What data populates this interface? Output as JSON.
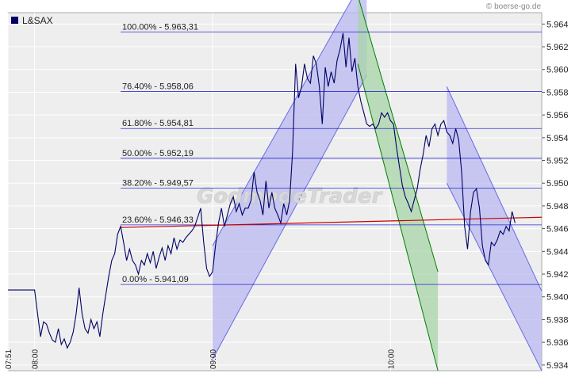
{
  "source": "© boerse-go.de",
  "watermark": "GodmodeTrader",
  "legend": {
    "label": "L&SAX",
    "color": "#000066"
  },
  "colors": {
    "price": "#000066",
    "fib": "#0000cc",
    "trend": "#cc0000",
    "channel_blue_fill": "#b8b8f0",
    "channel_blue_line": "#6a6ae6",
    "channel_green_fill": "#a8d4a8",
    "channel_green_line": "#008000",
    "plot_bg": "#eeeeee",
    "grid": "#ffffff"
  },
  "chart_data": {
    "type": "line",
    "ylim": [
      5.9335,
      5.965
    ],
    "y_ticks": [
      "5.964",
      "5.962",
      "5.960",
      "5.958",
      "5.956",
      "5.954",
      "5.952",
      "5.950",
      "5.948",
      "5.946",
      "5.944",
      "5.942",
      "5.940",
      "5.938",
      "5.936",
      "5.934"
    ],
    "x_ticks": [
      {
        "label": "07:51",
        "t": 0
      },
      {
        "label": "08:00",
        "t": 9
      },
      {
        "label": "09:00",
        "t": 69
      },
      {
        "label": "10:00",
        "t": 129
      }
    ],
    "xlim": [
      0,
      180
    ],
    "fib_levels": [
      {
        "label": "100.00% - 5.963,31",
        "value": 5.96331
      },
      {
        "label": "76.40% - 5.958,06",
        "value": 5.95806
      },
      {
        "label": "61.80% - 5.954,81",
        "value": 5.95481
      },
      {
        "label": "50.00% - 5.952,19",
        "value": 5.95219
      },
      {
        "label": "38.20% - 5.949,57",
        "value": 5.94957
      },
      {
        "label": "23.60% - 5.946,33",
        "value": 5.94633
      },
      {
        "label": "0.00% - 5.941,09",
        "value": 5.94109
      }
    ],
    "trend_line": {
      "t1": 38,
      "y1": 5.9461,
      "t2": 180,
      "y2": 5.947
    },
    "series": [
      {
        "values": [
          [
            0,
            5.9406
          ],
          [
            2,
            5.9406
          ],
          [
            4,
            5.9406
          ],
          [
            6,
            5.9406
          ],
          [
            8,
            5.9406
          ],
          [
            9,
            5.9406
          ],
          [
            10,
            5.9385
          ],
          [
            11,
            5.9365
          ],
          [
            12,
            5.9378
          ],
          [
            13,
            5.9376
          ],
          [
            14,
            5.9368
          ],
          [
            15,
            5.9362
          ],
          [
            16,
            5.936
          ],
          [
            17,
            5.9372
          ],
          [
            18,
            5.9358
          ],
          [
            19,
            5.9363
          ],
          [
            20,
            5.9355
          ],
          [
            21,
            5.936
          ],
          [
            22,
            5.9369
          ],
          [
            23,
            5.9385
          ],
          [
            24,
            5.9408
          ],
          [
            25,
            5.9385
          ],
          [
            26,
            5.9372
          ],
          [
            27,
            5.9368
          ],
          [
            28,
            5.938
          ],
          [
            29,
            5.9372
          ],
          [
            30,
            5.9378
          ],
          [
            31,
            5.9365
          ],
          [
            32,
            5.9385
          ],
          [
            33,
            5.9402
          ],
          [
            34,
            5.9418
          ],
          [
            35,
            5.9432
          ],
          [
            36,
            5.9438
          ],
          [
            37,
            5.9455
          ],
          [
            38,
            5.9462
          ],
          [
            39,
            5.9448
          ],
          [
            40,
            5.9432
          ],
          [
            41,
            5.9442
          ],
          [
            42,
            5.9432
          ],
          [
            43,
            5.9428
          ],
          [
            44,
            5.942
          ],
          [
            45,
            5.9432
          ],
          [
            46,
            5.9428
          ],
          [
            47,
            5.9438
          ],
          [
            48,
            5.943
          ],
          [
            49,
            5.944
          ],
          [
            50,
            5.9425
          ],
          [
            51,
            5.9435
          ],
          [
            52,
            5.9443
          ],
          [
            53,
            5.9432
          ],
          [
            54,
            5.9445
          ],
          [
            55,
            5.9438
          ],
          [
            56,
            5.9452
          ],
          [
            57,
            5.9442
          ],
          [
            58,
            5.945
          ],
          [
            59,
            5.9448
          ],
          [
            60,
            5.9452
          ],
          [
            61,
            5.9455
          ],
          [
            62,
            5.9458
          ],
          [
            63,
            5.9462
          ],
          [
            64,
            5.947
          ],
          [
            65,
            5.9478
          ],
          [
            66,
            5.9448
          ],
          [
            67,
            5.9425
          ],
          [
            68,
            5.9418
          ],
          [
            69,
            5.9422
          ],
          [
            70,
            5.9445
          ],
          [
            71,
            5.9465
          ],
          [
            72,
            5.9478
          ],
          [
            73,
            5.9462
          ],
          [
            74,
            5.9472
          ],
          [
            75,
            5.9482
          ],
          [
            76,
            5.9488
          ],
          [
            77,
            5.9475
          ],
          [
            78,
            5.9482
          ],
          [
            79,
            5.9472
          ],
          [
            80,
            5.9478
          ],
          [
            81,
            5.9478
          ],
          [
            82,
            5.9485
          ],
          [
            83,
            5.951
          ],
          [
            84,
            5.9492
          ],
          [
            85,
            5.9485
          ],
          [
            86,
            5.9472
          ],
          [
            87,
            5.9502
          ],
          [
            88,
            5.9478
          ],
          [
            89,
            5.9492
          ],
          [
            90,
            5.9478
          ],
          [
            91,
            5.9472
          ],
          [
            92,
            5.9465
          ],
          [
            93,
            5.9482
          ],
          [
            94,
            5.9472
          ],
          [
            95,
            5.9485
          ],
          [
            96,
            5.9528
          ],
          [
            97,
            5.9605
          ],
          [
            98,
            5.9575
          ],
          [
            99,
            5.9585
          ],
          [
            100,
            5.9605
          ],
          [
            101,
            5.9592
          ],
          [
            102,
            5.9588
          ],
          [
            103,
            5.9612
          ],
          [
            104,
            5.9605
          ],
          [
            105,
            5.9585
          ],
          [
            106,
            5.9552
          ],
          [
            107,
            5.9602
          ],
          [
            108,
            5.9585
          ],
          [
            109,
            5.9598
          ],
          [
            110,
            5.9588
          ],
          [
            111,
            5.9608
          ],
          [
            112,
            5.9618
          ],
          [
            113,
            5.9632
          ],
          [
            114,
            5.9602
          ],
          [
            115,
            5.9628
          ],
          [
            116,
            5.9598
          ],
          [
            117,
            5.961
          ],
          [
            118,
            5.9585
          ],
          [
            119,
            5.9572
          ],
          [
            120,
            5.9562
          ],
          [
            121,
            5.9552
          ],
          [
            122,
            5.955
          ],
          [
            123,
            5.9552
          ],
          [
            124,
            5.9548
          ],
          [
            125,
            5.9552
          ],
          [
            126,
            5.9562
          ],
          [
            127,
            5.9558
          ],
          [
            128,
            5.9562
          ],
          [
            129,
            5.9555
          ],
          [
            130,
            5.9552
          ],
          [
            131,
            5.9532
          ],
          [
            132,
            5.9515
          ],
          [
            133,
            5.9498
          ],
          [
            134,
            5.9488
          ],
          [
            135,
            5.9482
          ],
          [
            136,
            5.9475
          ],
          [
            137,
            5.9485
          ],
          [
            138,
            5.9495
          ],
          [
            139,
            5.9512
          ],
          [
            140,
            5.9525
          ],
          [
            141,
            5.9542
          ],
          [
            142,
            5.9532
          ],
          [
            143,
            5.9548
          ],
          [
            144,
            5.9552
          ],
          [
            145,
            5.9542
          ],
          [
            146,
            5.9552
          ],
          [
            147,
            5.9555
          ],
          [
            148,
            5.9545
          ],
          [
            149,
            5.9542
          ],
          [
            150,
            5.9535
          ],
          [
            151,
            5.9548
          ],
          [
            152,
            5.9538
          ],
          [
            153,
            5.951
          ],
          [
            154,
            5.9462
          ],
          [
            155,
            5.9442
          ],
          [
            156,
            5.9475
          ],
          [
            157,
            5.9492
          ],
          [
            158,
            5.9495
          ],
          [
            159,
            5.9478
          ],
          [
            160,
            5.9445
          ],
          [
            161,
            5.9432
          ],
          [
            162,
            5.9428
          ],
          [
            163,
            5.9448
          ],
          [
            164,
            5.9445
          ],
          [
            165,
            5.945
          ],
          [
            166,
            5.9458
          ],
          [
            167,
            5.9455
          ],
          [
            168,
            5.9462
          ],
          [
            169,
            5.9458
          ],
          [
            170,
            5.9475
          ],
          [
            171,
            5.9465
          ]
        ]
      }
    ],
    "channels": [
      {
        "kind": "blue",
        "a_top": [
          69,
          5.9445
        ],
        "a_bot": [
          69,
          5.9345
        ],
        "b_top": [
          121,
          5.9685
        ],
        "b_bot": [
          121,
          5.9595
        ]
      },
      {
        "kind": "green",
        "a_top": [
          118,
          5.9665
        ],
        "a_bot": [
          118,
          5.9605
        ],
        "b_top": [
          145,
          5.9422
        ],
        "b_bot": [
          145,
          5.9335
        ]
      },
      {
        "kind": "blue",
        "a_top": [
          148,
          5.9585
        ],
        "a_bot": [
          148,
          5.95
        ],
        "b_top": [
          180,
          5.9405
        ],
        "b_bot": [
          180,
          5.9335
        ]
      }
    ]
  }
}
